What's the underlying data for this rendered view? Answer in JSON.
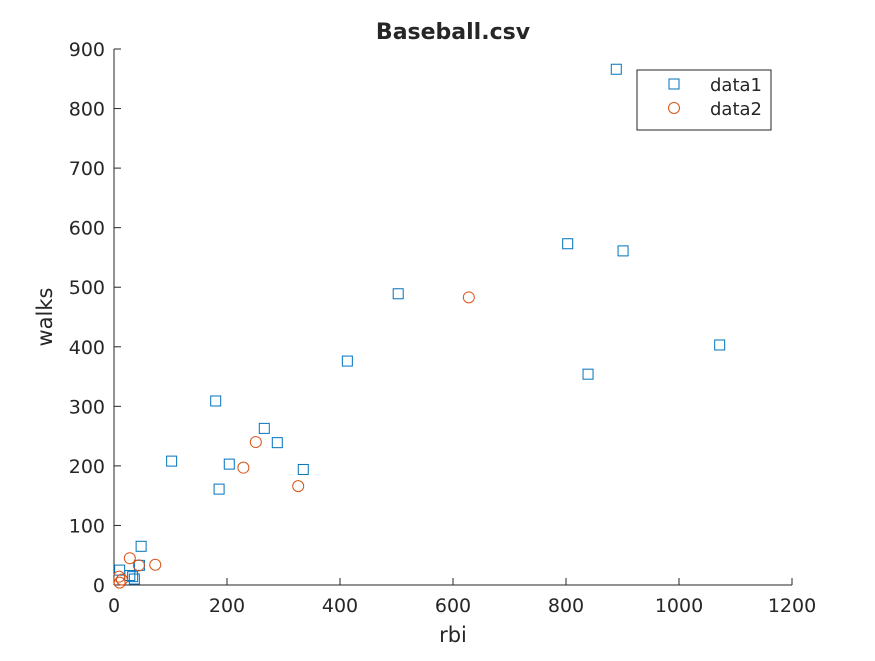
{
  "chart_data": {
    "type": "scatter",
    "title": "Baseball.csv",
    "xlabel": "rbi",
    "ylabel": "walks",
    "xlim": [
      0,
      1200
    ],
    "ylim": [
      0,
      900
    ],
    "xticks": [
      0,
      200,
      400,
      600,
      800,
      1000,
      1200
    ],
    "yticks": [
      0,
      100,
      200,
      300,
      400,
      500,
      600,
      700,
      800,
      900
    ],
    "grid": false,
    "legend_position": "top-right",
    "series": [
      {
        "name": "data1",
        "marker": "square",
        "color": "#0072BD",
        "points": [
          [
            889,
            866
          ],
          [
            803,
            573
          ],
          [
            901,
            561
          ],
          [
            503,
            489
          ],
          [
            1072,
            403
          ],
          [
            413,
            376
          ],
          [
            839,
            354
          ],
          [
            180,
            309
          ],
          [
            266,
            263
          ],
          [
            289,
            239
          ],
          [
            102,
            208
          ],
          [
            204,
            203
          ],
          [
            335,
            194
          ],
          [
            186,
            161
          ],
          [
            48,
            65
          ],
          [
            45,
            33
          ],
          [
            10,
            25
          ],
          [
            28,
            16
          ],
          [
            36,
            10
          ],
          [
            33,
            14
          ]
        ]
      },
      {
        "name": "data2",
        "marker": "circle",
        "color": "#D95319",
        "points": [
          [
            628,
            483
          ],
          [
            251,
            240
          ],
          [
            229,
            197
          ],
          [
            326,
            166
          ],
          [
            73,
            34
          ],
          [
            44,
            33
          ],
          [
            28,
            45
          ],
          [
            9,
            14
          ],
          [
            10,
            4
          ],
          [
            14,
            9
          ]
        ]
      }
    ]
  }
}
